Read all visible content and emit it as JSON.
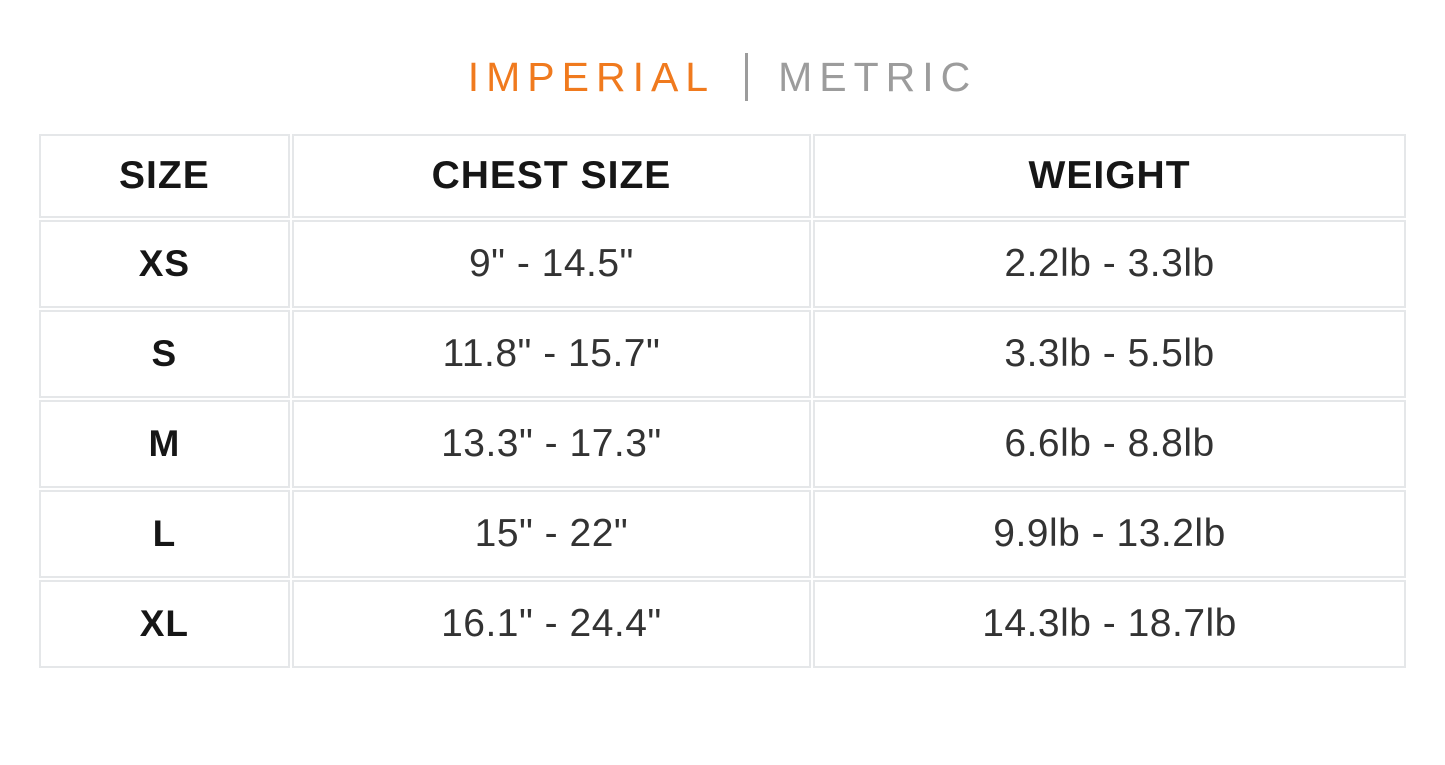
{
  "theme": {
    "accent-orange": "#f07a1e",
    "inactive-gray": "#9c9c9c",
    "divider-gray": "#9c9c9c",
    "border-gray": "#e5e7e9"
  },
  "unit_toggle": {
    "imperial_label": "IMPERIAL",
    "metric_label": "METRIC",
    "selected": "IMPERIAL"
  },
  "table": {
    "headers": [
      "SIZE",
      "CHEST SIZE",
      "WEIGHT"
    ],
    "rows": [
      {
        "size": "XS",
        "chest": "9\" - 14.5\"",
        "weight": "2.2lb - 3.3lb"
      },
      {
        "size": "S",
        "chest": "11.8\" - 15.7\"",
        "weight": "3.3lb - 5.5lb"
      },
      {
        "size": "M",
        "chest": "13.3\" - 17.3\"",
        "weight": "6.6lb - 8.8lb"
      },
      {
        "size": "L",
        "chest": "15\" - 22\"",
        "weight": "9.9lb - 13.2lb"
      },
      {
        "size": "XL",
        "chest": "16.1\" - 24.4\"",
        "weight": "14.3lb - 18.7lb"
      }
    ]
  }
}
